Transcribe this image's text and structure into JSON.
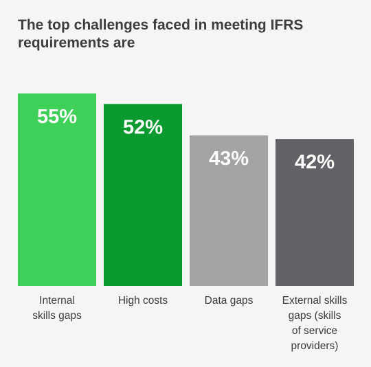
{
  "chart_data": {
    "type": "bar",
    "title": "The top challenges faced in meeting IFRS requirements are",
    "categories": [
      [
        "Internal",
        "skills gaps"
      ],
      [
        "High costs"
      ],
      [
        "Data gaps"
      ],
      [
        "External skills",
        "gaps (skills",
        "of service",
        "providers)"
      ]
    ],
    "values": [
      55,
      52,
      43,
      42
    ],
    "value_labels": [
      "55%",
      "52%",
      "43%",
      "42%"
    ],
    "colors": [
      "#3fd05a",
      "#0a9a30",
      "#a3a3a5",
      "#636367"
    ],
    "ylim": [
      0,
      55
    ],
    "grid": false,
    "legend": "none"
  }
}
